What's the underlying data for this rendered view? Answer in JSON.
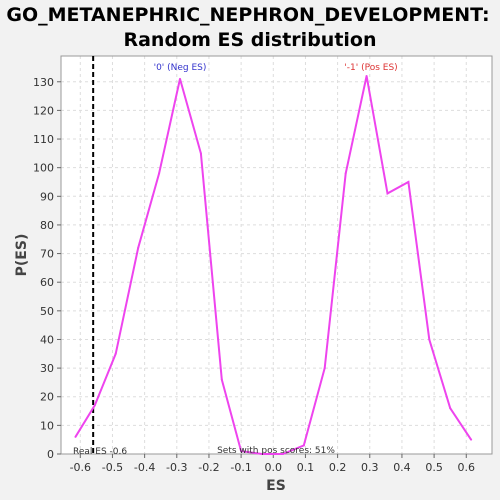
{
  "chart_data": {
    "type": "line",
    "title_line1": "GO_METANEPHRIC_NEPHRON_DEVELOPMENT:",
    "title_line2": "Random ES distribution",
    "xlabel": "ES",
    "ylabel": "P(ES)",
    "xlim": [
      -0.66,
      0.68
    ],
    "ylim": [
      0,
      139
    ],
    "xticks": [
      -0.6,
      -0.5,
      -0.4,
      -0.3,
      -0.2,
      -0.1,
      0.0,
      0.1,
      0.2,
      0.3,
      0.4,
      0.5,
      0.6
    ],
    "yticks": [
      0,
      10,
      20,
      30,
      40,
      50,
      60,
      70,
      80,
      90,
      100,
      110,
      120,
      130
    ],
    "grid": true,
    "series": [
      {
        "color": "#ee44ee",
        "x": [
          -0.615,
          -0.555,
          -0.49,
          -0.42,
          -0.355,
          -0.29,
          -0.225,
          -0.16,
          -0.1,
          -0.035,
          0.03,
          0.095,
          0.16,
          0.225,
          0.29,
          0.355,
          0.42,
          0.485,
          0.55,
          0.615
        ],
        "y": [
          6,
          17,
          35,
          72,
          98,
          131,
          105,
          26,
          1,
          0,
          0,
          3,
          30,
          98,
          132,
          91,
          95,
          40,
          16,
          5
        ]
      }
    ],
    "real_es": -0.56,
    "annotations": {
      "neg_label": "'0' (Neg ES)",
      "neg_color": "#3333cc",
      "pos_label": "'-1' (Pos ES)",
      "pos_color": "#dd3333",
      "real_es_label": "Real ES -0.6",
      "pos_scores_label": "Sets with pos scores: 51%"
    }
  }
}
